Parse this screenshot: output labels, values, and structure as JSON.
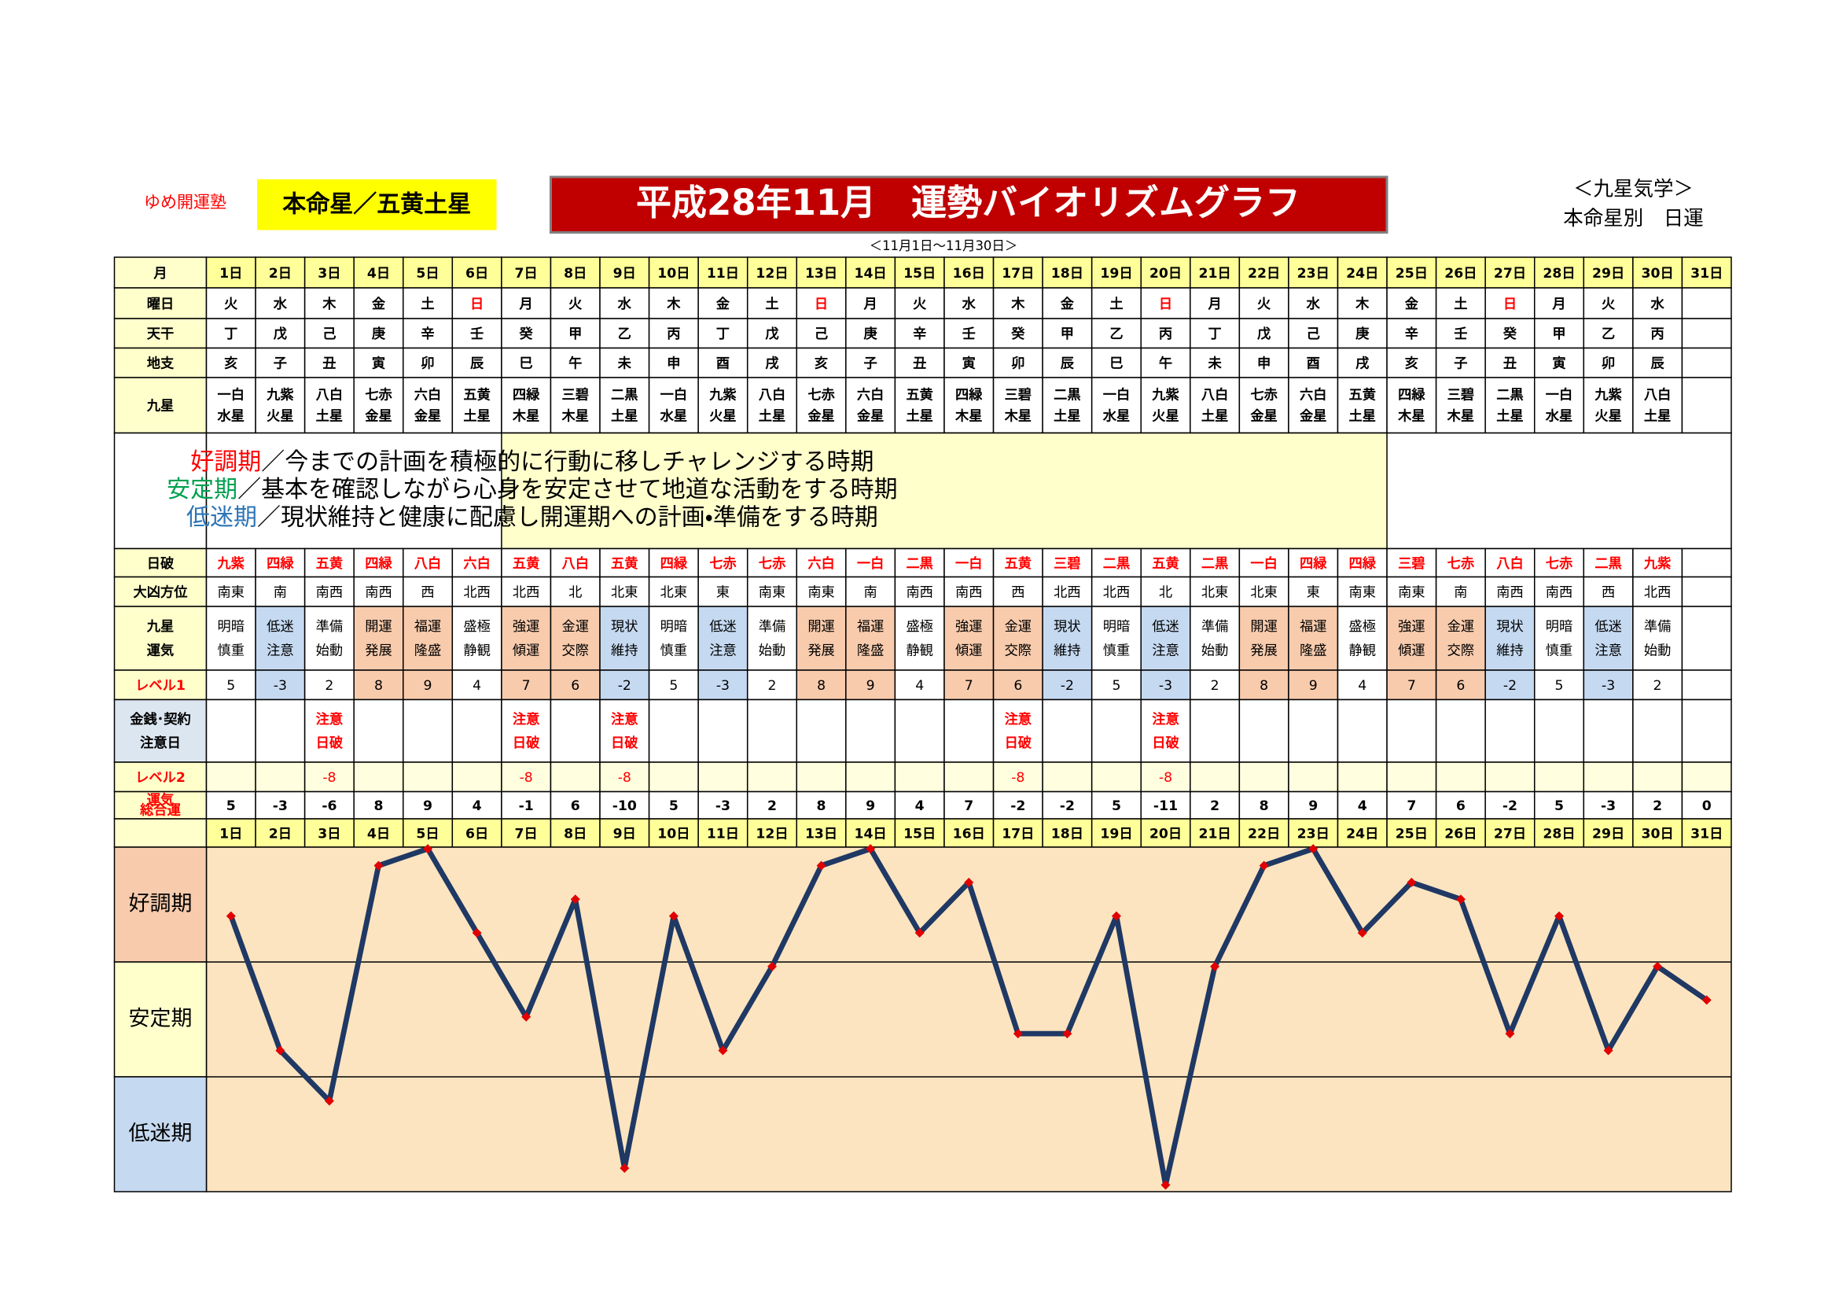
{
  "header": {
    "school": "ゆめ開運塾",
    "honmei": "本命星／五黄土星",
    "title": "平成28年11月　運勢バイオリズムグラフ",
    "system": "＜九星気学＞",
    "kind": "本命星別　日運",
    "range": "＜11月1日～11月30日＞"
  },
  "table": {
    "labels": {
      "month": "月",
      "weekday": "曜日",
      "kan": "天干",
      "shi": "地支",
      "star": "九星",
      "hakai": "日破",
      "direction": "大凶方位",
      "fortune": [
        "九星",
        "運気"
      ],
      "level1": "レベル1",
      "caution": [
        "金銭･契約",
        "注意日"
      ],
      "level2": "レベル2",
      "total": [
        "運気",
        "総合運"
      ]
    },
    "days": [
      "1日",
      "2日",
      "3日",
      "4日",
      "5日",
      "6日",
      "7日",
      "8日",
      "9日",
      "10日",
      "11日",
      "12日",
      "13日",
      "14日",
      "15日",
      "16日",
      "17日",
      "18日",
      "19日",
      "20日",
      "21日",
      "22日",
      "23日",
      "24日",
      "25日",
      "26日",
      "27日",
      "28日",
      "29日",
      "30日",
      "31日"
    ],
    "weekday": [
      "火",
      "水",
      "木",
      "金",
      "土",
      "日",
      "月",
      "火",
      "水",
      "木",
      "金",
      "土",
      "日",
      "月",
      "火",
      "水",
      "木",
      "金",
      "土",
      "日",
      "月",
      "火",
      "水",
      "木",
      "金",
      "土",
      "日",
      "月",
      "火",
      "水",
      null
    ],
    "weekday_colors": [
      "#000000",
      "#000000",
      "#000000",
      "#000000",
      "#000000",
      "#ff0000",
      "#000000",
      "#000000",
      "#000000",
      "#000000",
      "#000000",
      "#000000",
      "#ff0000",
      "#000000",
      "#000000",
      "#000000",
      "#000000",
      "#000000",
      "#000000",
      "#ff0000",
      "#000000",
      "#000000",
      "#000000",
      "#000000",
      "#000000",
      "#000000",
      "#ff0000",
      "#000000",
      "#000000",
      "#000000",
      null
    ],
    "kan": [
      "丁",
      "戊",
      "己",
      "庚",
      "辛",
      "壬",
      "癸",
      "甲",
      "乙",
      "丙",
      "丁",
      "戊",
      "己",
      "庚",
      "辛",
      "壬",
      "癸",
      "甲",
      "乙",
      "丙",
      "丁",
      "戊",
      "己",
      "庚",
      "辛",
      "壬",
      "癸",
      "甲",
      "乙",
      "丙",
      null
    ],
    "shi": [
      "亥",
      "子",
      "丑",
      "寅",
      "卯",
      "辰",
      "巳",
      "午",
      "未",
      "申",
      "酉",
      "戌",
      "亥",
      "子",
      "丑",
      "寅",
      "卯",
      "辰",
      "巳",
      "午",
      "未",
      "申",
      "酉",
      "戌",
      "亥",
      "子",
      "丑",
      "寅",
      "卯",
      "辰",
      null
    ],
    "star": [
      [
        "一白",
        "水星"
      ],
      [
        "九紫",
        "火星"
      ],
      [
        "八白",
        "土星"
      ],
      [
        "七赤",
        "金星"
      ],
      [
        "六白",
        "金星"
      ],
      [
        "五黄",
        "土星"
      ],
      [
        "四緑",
        "木星"
      ],
      [
        "三碧",
        "木星"
      ],
      [
        "二黒",
        "土星"
      ],
      [
        "一白",
        "水星"
      ],
      [
        "九紫",
        "火星"
      ],
      [
        "八白",
        "土星"
      ],
      [
        "七赤",
        "金星"
      ],
      [
        "六白",
        "金星"
      ],
      [
        "五黄",
        "土星"
      ],
      [
        "四緑",
        "木星"
      ],
      [
        "三碧",
        "木星"
      ],
      [
        "二黒",
        "土星"
      ],
      [
        "一白",
        "水星"
      ],
      [
        "九紫",
        "火星"
      ],
      [
        "八白",
        "土星"
      ],
      [
        "七赤",
        "金星"
      ],
      [
        "六白",
        "金星"
      ],
      [
        "五黄",
        "土星"
      ],
      [
        "四緑",
        "木星"
      ],
      [
        "三碧",
        "木星"
      ],
      [
        "二黒",
        "土星"
      ],
      [
        "一白",
        "水星"
      ],
      [
        "九紫",
        "火星"
      ],
      [
        "八白",
        "土星"
      ],
      null
    ],
    "hakai": [
      "九紫",
      "四緑",
      "五黄",
      "四緑",
      "八白",
      "六白",
      "五黄",
      "八白",
      "五黄",
      "四緑",
      "七赤",
      "七赤",
      "六白",
      "一白",
      "二黒",
      "一白",
      "五黄",
      "三碧",
      "二黒",
      "五黄",
      "二黒",
      "一白",
      "四緑",
      "四緑",
      "三碧",
      "七赤",
      "八白",
      "七赤",
      "二黒",
      "九紫",
      null
    ],
    "direction": [
      "南東",
      "南",
      "南西",
      "南西",
      "西",
      "北西",
      "北西",
      "北",
      "北東",
      "北東",
      "東",
      "南東",
      "南東",
      "南",
      "南西",
      "南西",
      "西",
      "北西",
      "北西",
      "北",
      "北東",
      "北東",
      "東",
      "南東",
      "南東",
      "南",
      "南西",
      "南西",
      "西",
      "北西",
      null
    ],
    "fortune": [
      [
        "明暗",
        "慎重"
      ],
      [
        "低迷",
        "注意"
      ],
      [
        "準備",
        "始動"
      ],
      [
        "開運",
        "発展"
      ],
      [
        "福運",
        "隆盛"
      ],
      [
        "盛極",
        "静観"
      ],
      [
        "強運",
        "傾運"
      ],
      [
        "金運",
        "交際"
      ],
      [
        "現状",
        "維持"
      ],
      [
        "明暗",
        "慎重"
      ],
      [
        "低迷",
        "注意"
      ],
      [
        "準備",
        "始動"
      ],
      [
        "開運",
        "発展"
      ],
      [
        "福運",
        "隆盛"
      ],
      [
        "盛極",
        "静観"
      ],
      [
        "強運",
        "傾運"
      ],
      [
        "金運",
        "交際"
      ],
      [
        "現状",
        "維持"
      ],
      [
        "明暗",
        "慎重"
      ],
      [
        "低迷",
        "注意"
      ],
      [
        "準備",
        "始動"
      ],
      [
        "開運",
        "発展"
      ],
      [
        "福運",
        "隆盛"
      ],
      [
        "盛極",
        "静観"
      ],
      [
        "強運",
        "傾運"
      ],
      [
        "金運",
        "交際"
      ],
      [
        "現状",
        "維持"
      ],
      [
        "明暗",
        "慎重"
      ],
      [
        "低迷",
        "注意"
      ],
      [
        "準備",
        "始動"
      ],
      null
    ],
    "fortune_colors": [
      "#ffffff",
      "#c5d9f1",
      "#ffffff",
      "#f8cbad",
      "#f8cbad",
      "#ffffff",
      "#f8cbad",
      "#f8cbad",
      "#c5d9f1",
      "#ffffff",
      "#c5d9f1",
      "#ffffff",
      "#f8cbad",
      "#f8cbad",
      "#ffffff",
      "#f8cbad",
      "#f8cbad",
      "#c5d9f1",
      "#ffffff",
      "#c5d9f1",
      "#ffffff",
      "#f8cbad",
      "#f8cbad",
      "#ffffff",
      "#f8cbad",
      "#f8cbad",
      "#c5d9f1",
      "#ffffff",
      "#c5d9f1",
      "#ffffff",
      null
    ],
    "level1": [
      5,
      -3,
      2,
      8,
      9,
      4,
      7,
      6,
      -2,
      5,
      -3,
      2,
      8,
      9,
      4,
      7,
      6,
      -2,
      5,
      -3,
      2,
      8,
      9,
      4,
      7,
      6,
      -2,
      5,
      -3,
      2,
      null
    ],
    "caution": [
      null,
      null,
      [
        "注意",
        "日破"
      ],
      null,
      null,
      null,
      [
        "注意",
        "日破"
      ],
      null,
      [
        "注意",
        "日破"
      ],
      null,
      null,
      null,
      null,
      null,
      null,
      null,
      [
        "注意",
        "日破"
      ],
      null,
      null,
      [
        "注意",
        "日破"
      ],
      null,
      null,
      null,
      null,
      null,
      null,
      null,
      null,
      null,
      null,
      null
    ],
    "level2": [
      null,
      null,
      -8,
      null,
      null,
      null,
      -8,
      null,
      -8,
      null,
      null,
      null,
      null,
      null,
      null,
      null,
      -8,
      null,
      null,
      -8,
      null,
      null,
      null,
      null,
      null,
      null,
      null,
      null,
      null,
      null,
      null
    ],
    "total": [
      5,
      -3,
      -6,
      8,
      9,
      4,
      -1,
      6,
      -10,
      5,
      -3,
      2,
      8,
      9,
      4,
      7,
      -2,
      -2,
      5,
      -11,
      2,
      8,
      9,
      4,
      7,
      6,
      -2,
      5,
      -3,
      2,
      0
    ]
  },
  "legend": [
    {
      "term": "好調期",
      "text": "／今までの計画を積極的に行動に移しチャレンジする時期",
      "color": "#ff0000"
    },
    {
      "term": "安定期",
      "text": "／基本を確認しながら心身を安定させて地道な活動をする時期",
      "color": "#00a050"
    },
    {
      "term": "低迷期",
      "text": "／現状維持と健康に配慮し開運期への計画・準備をする時期",
      "color": "#2e75b6"
    }
  ],
  "chart": {
    "bands": [
      "好調期",
      "安定期",
      "低迷期"
    ],
    "band_colors": [
      "#f8cbad",
      "#ffffcc",
      "#c5d9f1"
    ],
    "ylim": [
      -11.4,
      9.1
    ],
    "line_color": "#1f3864",
    "marker_color": "#e00000",
    "background": "#fce4c0"
  }
}
